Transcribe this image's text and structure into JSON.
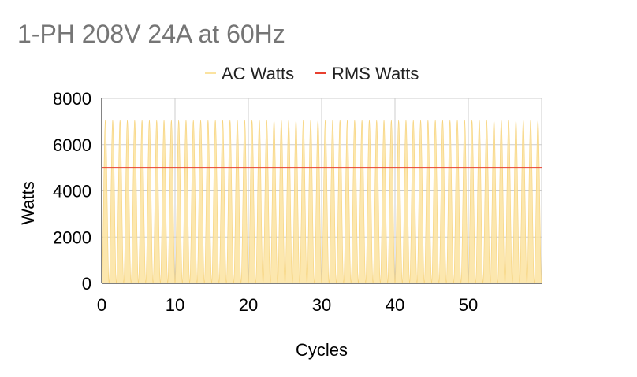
{
  "chart_data": {
    "type": "area",
    "title": "1-PH 208V 24A at 60Hz",
    "xlabel": "Cycles",
    "ylabel": "Watts",
    "xlim": [
      0,
      60
    ],
    "ylim": [
      0,
      8000
    ],
    "x_ticks": [
      0,
      10,
      20,
      30,
      40,
      50
    ],
    "y_ticks": [
      0,
      2000,
      4000,
      6000,
      8000
    ],
    "grid": true,
    "legend_position": "top",
    "series": [
      {
        "name": "AC Watts",
        "kind": "area",
        "color": "#fbe3a0",
        "waveform": "sin^2",
        "peak": 7060,
        "min": 0,
        "cycles": 60
      },
      {
        "name": "RMS Watts",
        "kind": "line",
        "color": "#e8402f",
        "value": 5000
      }
    ],
    "colors": {
      "title": "#757575",
      "axis_text": "#000000",
      "grid": "#cccccc"
    }
  }
}
